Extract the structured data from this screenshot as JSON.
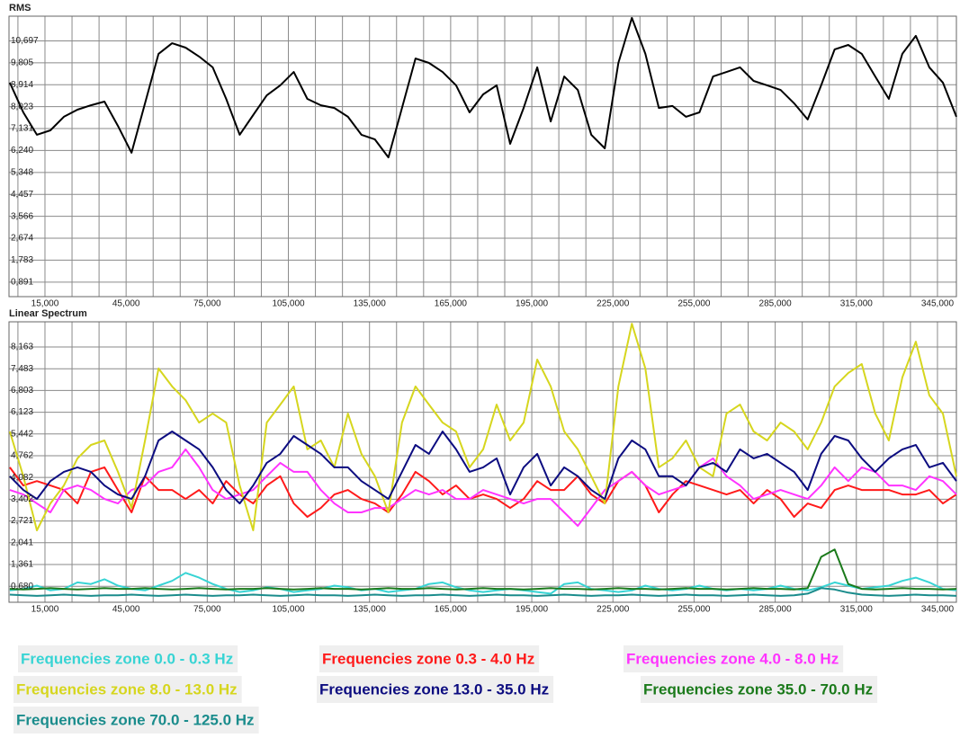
{
  "chart_data": [
    {
      "type": "line",
      "title": "RMS",
      "color": "#000000",
      "grid": true,
      "grid_subdivisions": 3,
      "xlim": [
        1700,
        352000
      ],
      "ylim": [
        0.3,
        11.7
      ],
      "xticks": [
        {
          "value": 15000,
          "label": "15,000"
        },
        {
          "value": 45000,
          "label": "45,000"
        },
        {
          "value": 75000,
          "label": "75,000"
        },
        {
          "value": 105000,
          "label": "105,000"
        },
        {
          "value": 135000,
          "label": "135,000"
        },
        {
          "value": 165000,
          "label": "165,000"
        },
        {
          "value": 195000,
          "label": "195,000"
        },
        {
          "value": 225000,
          "label": "225,000"
        },
        {
          "value": 255000,
          "label": "255,000"
        },
        {
          "value": 285000,
          "label": "285,000"
        },
        {
          "value": 315000,
          "label": "315,000"
        },
        {
          "value": 345000,
          "label": "345,000"
        }
      ],
      "yticks": [
        {
          "value": 0.891,
          "label": "0,891"
        },
        {
          "value": 1.783,
          "label": "1,783"
        },
        {
          "value": 2.674,
          "label": "2,674"
        },
        {
          "value": 3.566,
          "label": "3,566"
        },
        {
          "value": 4.457,
          "label": "4,457"
        },
        {
          "value": 5.348,
          "label": "5,348"
        },
        {
          "value": 6.24,
          "label": "6,240"
        },
        {
          "value": 7.131,
          "label": "7,131"
        },
        {
          "value": 8.023,
          "label": "8,023"
        },
        {
          "value": 8.914,
          "label": "8,914"
        },
        {
          "value": 9.805,
          "label": "9,805"
        },
        {
          "value": 10.697,
          "label": "10,697"
        }
      ],
      "x": [
        2000,
        7000,
        12000,
        17000,
        22000,
        27000,
        32000,
        37000,
        42000,
        47000,
        52000,
        57000,
        62000,
        67000,
        72000,
        77000,
        82000,
        87000,
        92000,
        97000,
        102000,
        107000,
        112000,
        117000,
        122000,
        127000,
        132000,
        137000,
        142000,
        147000,
        152000,
        157000,
        162000,
        167000,
        172000,
        177000,
        182000,
        187000,
        192000,
        197000,
        202000,
        207000,
        212000,
        217000,
        222000,
        227000,
        232000,
        237000,
        242000,
        247000,
        252000,
        257000,
        262000,
        267000,
        272000,
        277000,
        282000,
        287000,
        292000,
        297000,
        302000,
        307000,
        312000,
        317000,
        322000,
        327000,
        332000,
        337000,
        342000,
        347000,
        352000
      ],
      "values": [
        9.0,
        7.79,
        6.88,
        7.06,
        7.61,
        7.9,
        8.08,
        8.23,
        7.24,
        6.15,
        8.16,
        10.17,
        10.6,
        10.42,
        10.06,
        9.62,
        8.34,
        6.88,
        7.68,
        8.48,
        8.89,
        9.43,
        8.34,
        8.08,
        7.97,
        7.61,
        6.88,
        6.69,
        5.96,
        7.97,
        9.98,
        9.8,
        9.43,
        8.89,
        7.79,
        8.52,
        8.89,
        6.51,
        7.97,
        9.62,
        7.42,
        9.25,
        8.7,
        6.88,
        6.33,
        9.8,
        11.63,
        10.17,
        7.97,
        8.05,
        7.61,
        7.79,
        9.25,
        9.43,
        9.62,
        9.07,
        8.89,
        8.7,
        8.16,
        7.5,
        8.89,
        10.35,
        10.53,
        10.17,
        9.25,
        8.34,
        10.17,
        10.9,
        9.62,
        9.0,
        7.61
      ]
    },
    {
      "type": "line",
      "title": "Linear Spectrum",
      "grid": true,
      "grid_subdivisions": 3,
      "legend": "bottom",
      "xlim": [
        1700,
        352000
      ],
      "ylim": [
        0.18,
        8.95
      ],
      "xticks": [
        {
          "value": 15000,
          "label": "15,000"
        },
        {
          "value": 45000,
          "label": "45,000"
        },
        {
          "value": 75000,
          "label": "75,000"
        },
        {
          "value": 105000,
          "label": "105,000"
        },
        {
          "value": 135000,
          "label": "135,000"
        },
        {
          "value": 165000,
          "label": "165,000"
        },
        {
          "value": 195000,
          "label": "195,000"
        },
        {
          "value": 225000,
          "label": "225,000"
        },
        {
          "value": 255000,
          "label": "255,000"
        },
        {
          "value": 285000,
          "label": "285,000"
        },
        {
          "value": 315000,
          "label": "315,000"
        },
        {
          "value": 345000,
          "label": "345,000"
        }
      ],
      "yticks": [
        {
          "value": 0.68,
          "label": "0,680"
        },
        {
          "value": 1.361,
          "label": "1,361"
        },
        {
          "value": 2.041,
          "label": "2,041"
        },
        {
          "value": 2.721,
          "label": "2,721"
        },
        {
          "value": 3.402,
          "label": "3,402"
        },
        {
          "value": 4.082,
          "label": "4,082"
        },
        {
          "value": 4.762,
          "label": "4,762"
        },
        {
          "value": 5.442,
          "label": "5,442"
        },
        {
          "value": 6.123,
          "label": "6,123"
        },
        {
          "value": 6.803,
          "label": "6,803"
        },
        {
          "value": 7.483,
          "label": "7,483"
        },
        {
          "value": 8.163,
          "label": "8,163"
        }
      ],
      "x": [
        2000,
        7000,
        12000,
        17000,
        22000,
        27000,
        32000,
        37000,
        42000,
        47000,
        52000,
        57000,
        62000,
        67000,
        72000,
        77000,
        82000,
        87000,
        92000,
        97000,
        102000,
        107000,
        112000,
        117000,
        122000,
        127000,
        132000,
        137000,
        142000,
        147000,
        152000,
        157000,
        162000,
        167000,
        172000,
        177000,
        182000,
        187000,
        192000,
        197000,
        202000,
        207000,
        212000,
        217000,
        222000,
        227000,
        232000,
        237000,
        242000,
        247000,
        252000,
        257000,
        262000,
        267000,
        272000,
        277000,
        282000,
        287000,
        292000,
        297000,
        302000,
        307000,
        312000,
        317000,
        322000,
        327000,
        332000,
        337000,
        342000,
        347000,
        352000
      ],
      "series": [
        {
          "name": "Frequencies zone 0.0 - 0.3 Hz",
          "color": "#38d4d4",
          "values": [
            0.55,
            0.6,
            0.7,
            0.55,
            0.6,
            0.8,
            0.75,
            0.9,
            0.7,
            0.6,
            0.55,
            0.7,
            0.85,
            1.1,
            0.95,
            0.75,
            0.6,
            0.5,
            0.55,
            0.65,
            0.6,
            0.5,
            0.55,
            0.6,
            0.7,
            0.65,
            0.55,
            0.6,
            0.5,
            0.55,
            0.6,
            0.75,
            0.8,
            0.65,
            0.55,
            0.5,
            0.55,
            0.6,
            0.55,
            0.5,
            0.45,
            0.75,
            0.8,
            0.6,
            0.55,
            0.5,
            0.55,
            0.7,
            0.6,
            0.55,
            0.6,
            0.7,
            0.6,
            0.55,
            0.6,
            0.55,
            0.6,
            0.7,
            0.6,
            0.55,
            0.65,
            0.8,
            0.7,
            0.6,
            0.65,
            0.7,
            0.85,
            0.95,
            0.8,
            0.6,
            0.55
          ]
        },
        {
          "name": "Frequencies zone 0.3 - 4.0 Hz",
          "color": "#ff1a1a",
          "values": [
            4.4,
            3.83,
            3.97,
            3.83,
            3.69,
            3.27,
            4.26,
            4.4,
            3.69,
            2.99,
            4.12,
            3.69,
            3.69,
            3.41,
            3.69,
            3.27,
            3.97,
            3.55,
            3.27,
            3.83,
            4.12,
            3.27,
            2.85,
            3.13,
            3.55,
            3.69,
            3.41,
            3.27,
            2.99,
            3.55,
            4.26,
            3.97,
            3.55,
            3.83,
            3.41,
            3.55,
            3.41,
            3.13,
            3.41,
            3.97,
            3.69,
            3.69,
            4.12,
            3.55,
            3.27,
            3.97,
            4.26,
            3.83,
            2.99,
            3.55,
            3.97,
            3.83,
            3.69,
            3.55,
            3.69,
            3.27,
            3.69,
            3.41,
            2.85,
            3.27,
            3.13,
            3.69,
            3.83,
            3.69,
            3.69,
            3.69,
            3.55,
            3.55,
            3.69,
            3.27,
            3.55
          ]
        },
        {
          "name": "Frequencies zone 4.0 - 8.0 Hz",
          "color": "#ff33ff",
          "values": [
            3.69,
            3.55,
            3.27,
            2.99,
            3.69,
            3.83,
            3.69,
            3.41,
            3.27,
            3.69,
            3.83,
            4.26,
            4.4,
            4.96,
            4.4,
            3.69,
            3.41,
            3.55,
            3.69,
            4.12,
            4.54,
            4.26,
            4.26,
            3.69,
            3.27,
            2.99,
            2.99,
            3.13,
            3.13,
            3.41,
            3.69,
            3.55,
            3.69,
            3.41,
            3.41,
            3.69,
            3.55,
            3.41,
            3.27,
            3.41,
            3.41,
            2.99,
            2.57,
            3.13,
            3.69,
            3.97,
            4.26,
            3.83,
            3.55,
            3.69,
            3.83,
            4.4,
            4.68,
            4.12,
            3.83,
            3.41,
            3.55,
            3.69,
            3.55,
            3.41,
            3.83,
            4.4,
            3.97,
            4.4,
            4.26,
            3.83,
            3.83,
            3.69,
            4.12,
            3.97,
            3.55
          ]
        },
        {
          "name": "Frequencies zone 8.0 - 13.0 Hz",
          "color": "#d6d61e",
          "values": [
            5.52,
            4.12,
            2.43,
            3.27,
            3.83,
            4.68,
            5.1,
            5.24,
            4.26,
            3.13,
            5.24,
            7.49,
            6.93,
            6.5,
            5.8,
            6.08,
            5.8,
            3.83,
            2.43,
            5.8,
            6.36,
            6.93,
            4.96,
            5.24,
            4.4,
            6.08,
            4.82,
            4.12,
            2.99,
            5.8,
            6.93,
            6.36,
            5.8,
            5.52,
            4.4,
            4.96,
            6.36,
            5.24,
            5.8,
            7.77,
            6.93,
            5.52,
            4.96,
            4.12,
            3.27,
            6.93,
            8.89,
            7.49,
            4.4,
            4.68,
            5.24,
            4.4,
            4.12,
            6.08,
            6.36,
            5.52,
            5.24,
            5.8,
            5.52,
            4.96,
            5.8,
            6.93,
            7.35,
            7.63,
            6.08,
            5.24,
            7.21,
            8.33,
            6.65,
            6.08,
            4.12
          ]
        },
        {
          "name": "Frequencies zone 13.0 - 35.0 Hz",
          "color": "#0c0c80",
          "values": [
            4.12,
            3.69,
            3.41,
            3.97,
            4.26,
            4.4,
            4.26,
            3.83,
            3.55,
            3.41,
            4.12,
            5.24,
            5.52,
            5.24,
            4.96,
            4.4,
            3.69,
            3.27,
            3.83,
            4.54,
            4.82,
            5.38,
            5.1,
            4.82,
            4.4,
            4.4,
            3.97,
            3.69,
            3.41,
            4.26,
            5.1,
            4.82,
            5.52,
            4.96,
            4.26,
            4.4,
            4.68,
            3.55,
            4.4,
            4.82,
            3.83,
            4.4,
            4.12,
            3.69,
            3.41,
            4.68,
            5.24,
            4.96,
            4.12,
            4.12,
            3.83,
            4.4,
            4.54,
            4.26,
            4.96,
            4.68,
            4.82,
            4.54,
            4.26,
            3.69,
            4.82,
            5.38,
            5.24,
            4.68,
            4.26,
            4.68,
            4.96,
            5.1,
            4.4,
            4.54,
            3.97
          ]
        },
        {
          "name": "Frequencies zone 35.0 - 70.0 Hz",
          "color": "#1b7a1b",
          "values": [
            0.6,
            0.58,
            0.6,
            0.62,
            0.6,
            0.58,
            0.6,
            0.62,
            0.6,
            0.6,
            0.62,
            0.6,
            0.58,
            0.6,
            0.62,
            0.6,
            0.58,
            0.6,
            0.6,
            0.62,
            0.6,
            0.58,
            0.6,
            0.62,
            0.6,
            0.6,
            0.58,
            0.6,
            0.62,
            0.6,
            0.6,
            0.62,
            0.6,
            0.58,
            0.6,
            0.62,
            0.6,
            0.6,
            0.58,
            0.6,
            0.62,
            0.6,
            0.6,
            0.58,
            0.6,
            0.62,
            0.6,
            0.6,
            0.58,
            0.6,
            0.62,
            0.6,
            0.6,
            0.58,
            0.6,
            0.62,
            0.6,
            0.6,
            0.58,
            0.62,
            1.6,
            1.83,
            0.75,
            0.6,
            0.58,
            0.6,
            0.62,
            0.6,
            0.6,
            0.58,
            0.6
          ]
        },
        {
          "name": "Frequencies zone 70.0 - 125.0 Hz",
          "color": "#1a8c8c",
          "values": [
            0.42,
            0.4,
            0.38,
            0.4,
            0.42,
            0.4,
            0.38,
            0.4,
            0.4,
            0.42,
            0.4,
            0.38,
            0.4,
            0.42,
            0.4,
            0.38,
            0.4,
            0.4,
            0.42,
            0.4,
            0.38,
            0.4,
            0.42,
            0.4,
            0.4,
            0.38,
            0.4,
            0.42,
            0.4,
            0.38,
            0.4,
            0.4,
            0.42,
            0.4,
            0.38,
            0.4,
            0.42,
            0.4,
            0.4,
            0.38,
            0.4,
            0.42,
            0.4,
            0.38,
            0.4,
            0.4,
            0.42,
            0.4,
            0.38,
            0.4,
            0.42,
            0.4,
            0.4,
            0.38,
            0.4,
            0.42,
            0.4,
            0.38,
            0.4,
            0.45,
            0.62,
            0.58,
            0.48,
            0.42,
            0.4,
            0.38,
            0.4,
            0.42,
            0.4,
            0.4,
            0.38
          ]
        }
      ]
    }
  ]
}
